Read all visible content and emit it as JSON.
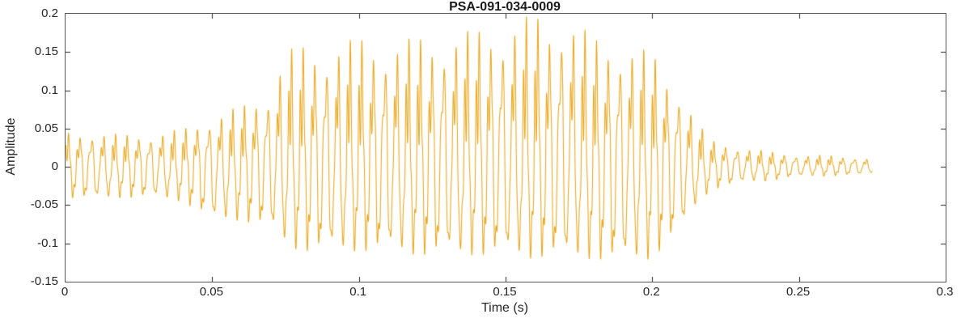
{
  "chart_data": {
    "type": "line",
    "title": "PSA-091-034-0009",
    "xlabel": "Time (s)",
    "ylabel": "Amplitude",
    "xlim": [
      0,
      0.3
    ],
    "ylim": [
      -0.15,
      0.2
    ],
    "x_ticks": [
      0,
      0.05,
      0.1,
      0.15,
      0.2,
      0.25,
      0.3
    ],
    "x_tick_labels": [
      "0",
      "0.05",
      "0.1",
      "0.15",
      "0.2",
      "0.25",
      "0.3"
    ],
    "y_ticks": [
      -0.15,
      -0.1,
      -0.05,
      0,
      0.05,
      0.1,
      0.15,
      0.2
    ],
    "y_tick_labels": [
      "-0.15",
      "-0.1",
      "-0.05",
      "0",
      "0.05",
      "0.1",
      "0.15",
      "0.2"
    ],
    "grid": false,
    "legend": "none",
    "line_color": "#EAA921",
    "axis_color": "#262626",
    "series_name": "audio-waveform",
    "signal": {
      "duration_s": 0.275,
      "f0_hz": 250,
      "envelope": {
        "t": [
          0,
          0.01,
          0.02,
          0.03,
          0.04,
          0.05,
          0.06,
          0.07,
          0.075,
          0.08,
          0.09,
          0.1,
          0.11,
          0.12,
          0.13,
          0.14,
          0.15,
          0.16,
          0.165,
          0.17,
          0.18,
          0.19,
          0.2,
          0.205,
          0.21,
          0.215,
          0.22,
          0.23,
          0.24,
          0.25,
          0.26,
          0.27,
          0.275
        ],
        "upper": [
          0.045,
          0.045,
          0.042,
          0.042,
          0.05,
          0.065,
          0.08,
          0.1,
          0.15,
          0.16,
          0.155,
          0.17,
          0.16,
          0.17,
          0.17,
          0.18,
          0.185,
          0.2,
          0.19,
          0.2,
          0.17,
          0.16,
          0.15,
          0.12,
          0.1,
          0.06,
          0.035,
          0.025,
          0.02,
          0.015,
          0.015,
          0.012,
          0.01
        ],
        "lower": [
          -0.04,
          -0.042,
          -0.04,
          -0.04,
          -0.045,
          -0.07,
          -0.07,
          -0.08,
          -0.1,
          -0.11,
          -0.11,
          -0.11,
          -0.11,
          -0.115,
          -0.115,
          -0.115,
          -0.115,
          -0.12,
          -0.115,
          -0.12,
          -0.12,
          -0.125,
          -0.12,
          -0.1,
          -0.08,
          -0.05,
          -0.03,
          -0.02,
          -0.018,
          -0.012,
          -0.012,
          -0.01,
          -0.008
        ]
      }
    }
  }
}
